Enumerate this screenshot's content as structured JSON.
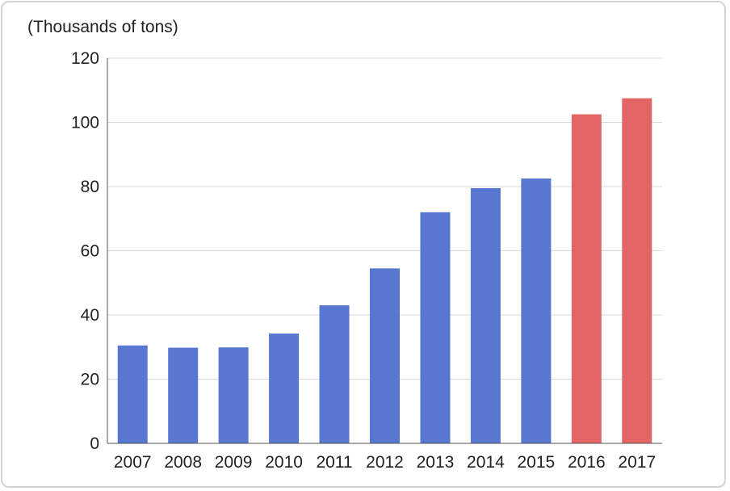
{
  "chart_data": {
    "type": "bar",
    "unit_label": "(Thousands of tons)",
    "categories": [
      "2007",
      "2008",
      "2009",
      "2010",
      "2011",
      "2012",
      "2013",
      "2014",
      "2015",
      "2016",
      "2017"
    ],
    "values": [
      30.5,
      29.8,
      29.9,
      34.2,
      43.0,
      54.5,
      72.0,
      79.5,
      82.5,
      102.5,
      107.5
    ],
    "bar_colors": [
      "#5877d1",
      "#5877d1",
      "#5877d1",
      "#5877d1",
      "#5877d1",
      "#5877d1",
      "#5877d1",
      "#5877d1",
      "#5877d1",
      "#e26465",
      "#e26465"
    ],
    "ylim": [
      0,
      120
    ],
    "yticks": [
      "0",
      "20",
      "40",
      "60",
      "80",
      "100",
      "120"
    ],
    "grid": true,
    "colors": {
      "gridline": "#d9d9d9",
      "axis": "#555555",
      "text": "#222222"
    }
  }
}
